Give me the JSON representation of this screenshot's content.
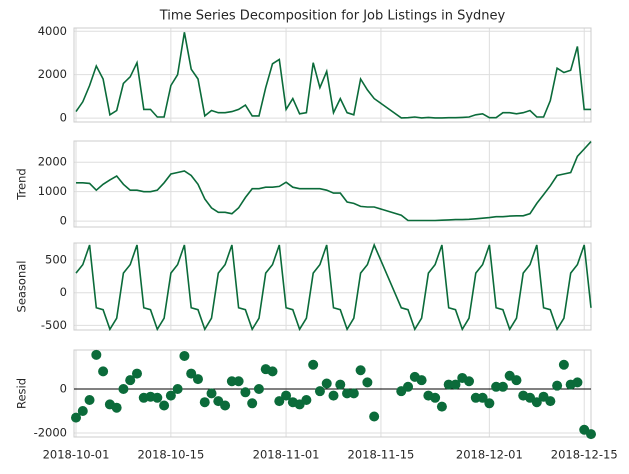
{
  "chart_data": [
    {
      "type": "line",
      "title": "Time Series Decomposition for Job Listings in Sydney",
      "color": "#0b6b3a",
      "grid": true,
      "x": [
        "2018-10-01",
        "2018-10-02",
        "2018-10-03",
        "2018-10-04",
        "2018-10-05",
        "2018-10-06",
        "2018-10-07",
        "2018-10-08",
        "2018-10-09",
        "2018-10-10",
        "2018-10-11",
        "2018-10-12",
        "2018-10-13",
        "2018-10-14",
        "2018-10-15",
        "2018-10-16",
        "2018-10-17",
        "2018-10-18",
        "2018-10-19",
        "2018-10-20",
        "2018-10-21",
        "2018-10-22",
        "2018-10-23",
        "2018-10-24",
        "2018-10-25",
        "2018-10-26",
        "2018-10-27",
        "2018-10-28",
        "2018-10-29",
        "2018-10-30",
        "2018-10-31",
        "2018-11-01",
        "2018-11-02",
        "2018-11-03",
        "2018-11-04",
        "2018-11-05",
        "2018-11-06",
        "2018-11-07",
        "2018-11-08",
        "2018-11-09",
        "2018-11-10",
        "2018-11-11",
        "2018-11-12",
        "2018-11-13",
        "2018-11-14",
        "2018-11-18",
        "2018-11-19",
        "2018-11-20",
        "2018-11-21",
        "2018-11-22",
        "2018-11-23",
        "2018-11-24",
        "2018-11-25",
        "2018-11-26",
        "2018-11-27",
        "2018-11-28",
        "2018-11-29",
        "2018-11-30",
        "2018-12-01",
        "2018-12-02",
        "2018-12-03",
        "2018-12-04",
        "2018-12-05",
        "2018-12-06",
        "2018-12-07",
        "2018-12-08",
        "2018-12-09",
        "2018-12-10",
        "2018-12-11",
        "2018-12-12",
        "2018-12-13",
        "2018-12-14",
        "2018-12-15",
        "2018-12-16"
      ],
      "values": [
        300,
        750,
        1500,
        2400,
        1800,
        150,
        350,
        1600,
        1900,
        2550,
        400,
        400,
        50,
        50,
        1500,
        2000,
        3950,
        2250,
        1800,
        100,
        350,
        250,
        250,
        300,
        400,
        600,
        100,
        100,
        1400,
        2500,
        2700,
        400,
        900,
        200,
        250,
        2550,
        1400,
        2150,
        250,
        900,
        250,
        150,
        1800,
        1300,
        900,
        10,
        20,
        50,
        10,
        30,
        10,
        10,
        20,
        20,
        30,
        50,
        150,
        200,
        20,
        20,
        250,
        250,
        200,
        250,
        350,
        50,
        50,
        800,
        2300,
        2100,
        2200,
        3300,
        400,
        400
      ],
      "xlim": [
        "2018-10-01",
        "2018-12-16"
      ],
      "xticks": [
        "2018-10-01",
        "2018-10-15",
        "2018-11-01",
        "2018-11-15",
        "2018-12-01",
        "2018-12-15"
      ],
      "ylim": [
        -180,
        4150
      ],
      "yticks": [
        0,
        2000,
        4000
      ]
    },
    {
      "type": "line",
      "y_label": "Trend",
      "color": "#0b6b3a",
      "grid": true,
      "x": [
        "2018-10-01",
        "2018-10-02",
        "2018-10-03",
        "2018-10-04",
        "2018-10-05",
        "2018-10-06",
        "2018-10-07",
        "2018-10-08",
        "2018-10-09",
        "2018-10-10",
        "2018-10-11",
        "2018-10-12",
        "2018-10-13",
        "2018-10-14",
        "2018-10-15",
        "2018-10-16",
        "2018-10-17",
        "2018-10-18",
        "2018-10-19",
        "2018-10-20",
        "2018-10-21",
        "2018-10-22",
        "2018-10-23",
        "2018-10-24",
        "2018-10-25",
        "2018-10-26",
        "2018-10-27",
        "2018-10-28",
        "2018-10-29",
        "2018-10-30",
        "2018-10-31",
        "2018-11-01",
        "2018-11-02",
        "2018-11-03",
        "2018-11-04",
        "2018-11-05",
        "2018-11-06",
        "2018-11-07",
        "2018-11-08",
        "2018-11-09",
        "2018-11-10",
        "2018-11-11",
        "2018-11-12",
        "2018-11-13",
        "2018-11-14",
        "2018-11-18",
        "2018-11-19",
        "2018-11-20",
        "2018-11-21",
        "2018-11-22",
        "2018-11-23",
        "2018-11-24",
        "2018-11-25",
        "2018-11-26",
        "2018-11-27",
        "2018-11-28",
        "2018-11-29",
        "2018-11-30",
        "2018-12-01",
        "2018-12-02",
        "2018-12-03",
        "2018-12-04",
        "2018-12-05",
        "2018-12-06",
        "2018-12-07",
        "2018-12-08",
        "2018-12-09",
        "2018-12-10",
        "2018-12-11",
        "2018-12-12",
        "2018-12-13",
        "2018-12-14",
        "2018-12-15",
        "2018-12-16"
      ],
      "values": [
        1300,
        1300,
        1280,
        1050,
        1250,
        1400,
        1530,
        1250,
        1050,
        1050,
        1000,
        1000,
        1050,
        1300,
        1600,
        1650,
        1700,
        1550,
        1250,
        750,
        450,
        300,
        300,
        250,
        450,
        800,
        1100,
        1100,
        1150,
        1150,
        1180,
        1320,
        1150,
        1100,
        1100,
        1100,
        1100,
        1050,
        950,
        950,
        650,
        600,
        500,
        480,
        480,
        200,
        20,
        20,
        20,
        20,
        20,
        30,
        40,
        50,
        50,
        60,
        80,
        100,
        120,
        150,
        150,
        170,
        180,
        180,
        250,
        600,
        900,
        1200,
        1550,
        1600,
        1650,
        2200,
        2450,
        2700
      ],
      "xlim": [
        "2018-10-01",
        "2018-12-16"
      ],
      "xticks": [
        "2018-10-01",
        "2018-10-15",
        "2018-11-01",
        "2018-11-15",
        "2018-12-01",
        "2018-12-15"
      ],
      "ylim": [
        -200,
        2720
      ],
      "yticks": [
        0,
        1000,
        2000
      ]
    },
    {
      "type": "line",
      "y_label": "Seasonal",
      "color": "#0b6b3a",
      "grid": true,
      "x": [
        "2018-10-01",
        "2018-10-02",
        "2018-10-03",
        "2018-10-04",
        "2018-10-05",
        "2018-10-06",
        "2018-10-07",
        "2018-10-08",
        "2018-10-09",
        "2018-10-10",
        "2018-10-11",
        "2018-10-12",
        "2018-10-13",
        "2018-10-14",
        "2018-10-15",
        "2018-10-16",
        "2018-10-17",
        "2018-10-18",
        "2018-10-19",
        "2018-10-20",
        "2018-10-21",
        "2018-10-22",
        "2018-10-23",
        "2018-10-24",
        "2018-10-25",
        "2018-10-26",
        "2018-10-27",
        "2018-10-28",
        "2018-10-29",
        "2018-10-30",
        "2018-10-31",
        "2018-11-01",
        "2018-11-02",
        "2018-11-03",
        "2018-11-04",
        "2018-11-05",
        "2018-11-06",
        "2018-11-07",
        "2018-11-08",
        "2018-11-09",
        "2018-11-10",
        "2018-11-11",
        "2018-11-12",
        "2018-11-13",
        "2018-11-14",
        "2018-11-18",
        "2018-11-19",
        "2018-11-20",
        "2018-11-21",
        "2018-11-22",
        "2018-11-23",
        "2018-11-24",
        "2018-11-25",
        "2018-11-26",
        "2018-11-27",
        "2018-11-28",
        "2018-11-29",
        "2018-11-30",
        "2018-12-01",
        "2018-12-02",
        "2018-12-03",
        "2018-12-04",
        "2018-12-05",
        "2018-12-06",
        "2018-12-07",
        "2018-12-08",
        "2018-12-09",
        "2018-12-10",
        "2018-12-11",
        "2018-12-12",
        "2018-12-13",
        "2018-12-14",
        "2018-12-15",
        "2018-12-16"
      ],
      "values": [
        300,
        430,
        730,
        -230,
        -260,
        -560,
        -390,
        300,
        430,
        730,
        -230,
        -260,
        -560,
        -390,
        300,
        430,
        730,
        -230,
        -260,
        -560,
        -390,
        300,
        430,
        730,
        -230,
        -260,
        -560,
        -390,
        300,
        430,
        730,
        -230,
        -260,
        -560,
        -390,
        300,
        430,
        730,
        -230,
        -260,
        -560,
        -390,
        300,
        430,
        730,
        -230,
        -260,
        -560,
        -390,
        300,
        430,
        730,
        -230,
        -260,
        -560,
        -390,
        300,
        430,
        730,
        -230,
        -260,
        -560,
        -390,
        300,
        430,
        730,
        -230,
        -260,
        -560,
        -390,
        300,
        430,
        730,
        -230
      ],
      "xlim": [
        "2018-10-01",
        "2018-12-16"
      ],
      "xticks": [
        "2018-10-01",
        "2018-10-15",
        "2018-11-01",
        "2018-11-15",
        "2018-12-01",
        "2018-12-15"
      ],
      "ylim": [
        -570,
        760
      ],
      "yticks": [
        -500,
        0,
        500
      ]
    },
    {
      "type": "scatter",
      "y_label": "Resid",
      "color": "#0b6b3a",
      "grid": true,
      "zero_line": true,
      "x": [
        "2018-10-01",
        "2018-10-02",
        "2018-10-03",
        "2018-10-04",
        "2018-10-05",
        "2018-10-06",
        "2018-10-07",
        "2018-10-08",
        "2018-10-09",
        "2018-10-10",
        "2018-10-11",
        "2018-10-12",
        "2018-10-13",
        "2018-10-14",
        "2018-10-15",
        "2018-10-16",
        "2018-10-17",
        "2018-10-18",
        "2018-10-19",
        "2018-10-20",
        "2018-10-21",
        "2018-10-22",
        "2018-10-23",
        "2018-10-24",
        "2018-10-25",
        "2018-10-26",
        "2018-10-27",
        "2018-10-28",
        "2018-10-29",
        "2018-10-30",
        "2018-10-31",
        "2018-11-01",
        "2018-11-02",
        "2018-11-03",
        "2018-11-04",
        "2018-11-05",
        "2018-11-06",
        "2018-11-07",
        "2018-11-08",
        "2018-11-09",
        "2018-11-10",
        "2018-11-11",
        "2018-11-12",
        "2018-11-13",
        "2018-11-14",
        "2018-11-18",
        "2018-11-19",
        "2018-11-20",
        "2018-11-21",
        "2018-11-22",
        "2018-11-23",
        "2018-11-24",
        "2018-11-25",
        "2018-11-26",
        "2018-11-27",
        "2018-11-28",
        "2018-11-29",
        "2018-11-30",
        "2018-12-01",
        "2018-12-02",
        "2018-12-03",
        "2018-12-04",
        "2018-12-05",
        "2018-12-06",
        "2018-12-07",
        "2018-12-08",
        "2018-12-09",
        "2018-12-10",
        "2018-12-11",
        "2018-12-12",
        "2018-12-13",
        "2018-12-14",
        "2018-12-15",
        "2018-12-16"
      ],
      "values": [
        -1300,
        -1000,
        -500,
        1550,
        800,
        -700,
        -850,
        0,
        400,
        700,
        -400,
        -350,
        -400,
        -750,
        -300,
        0,
        1500,
        700,
        450,
        -600,
        -200,
        -550,
        -750,
        350,
        350,
        -150,
        -650,
        0,
        900,
        800,
        -550,
        -300,
        -600,
        -700,
        -500,
        1100,
        -100,
        250,
        -300,
        200,
        -200,
        -200,
        850,
        300,
        -1250,
        -100,
        100,
        550,
        400,
        -300,
        -400,
        -800,
        200,
        200,
        500,
        350,
        -400,
        -400,
        -650,
        100,
        100,
        600,
        400,
        -300,
        -400,
        -600,
        -350,
        -550,
        150,
        1100,
        200,
        300,
        -1850,
        -2050
      ],
      "xlim": [
        "2018-10-01",
        "2018-12-16"
      ],
      "xticks": [
        "2018-10-01",
        "2018-10-15",
        "2018-11-01",
        "2018-11-15",
        "2018-12-01",
        "2018-12-15"
      ],
      "ylim": [
        -2180,
        1770
      ],
      "yticks": [
        -2000,
        0
      ]
    }
  ]
}
